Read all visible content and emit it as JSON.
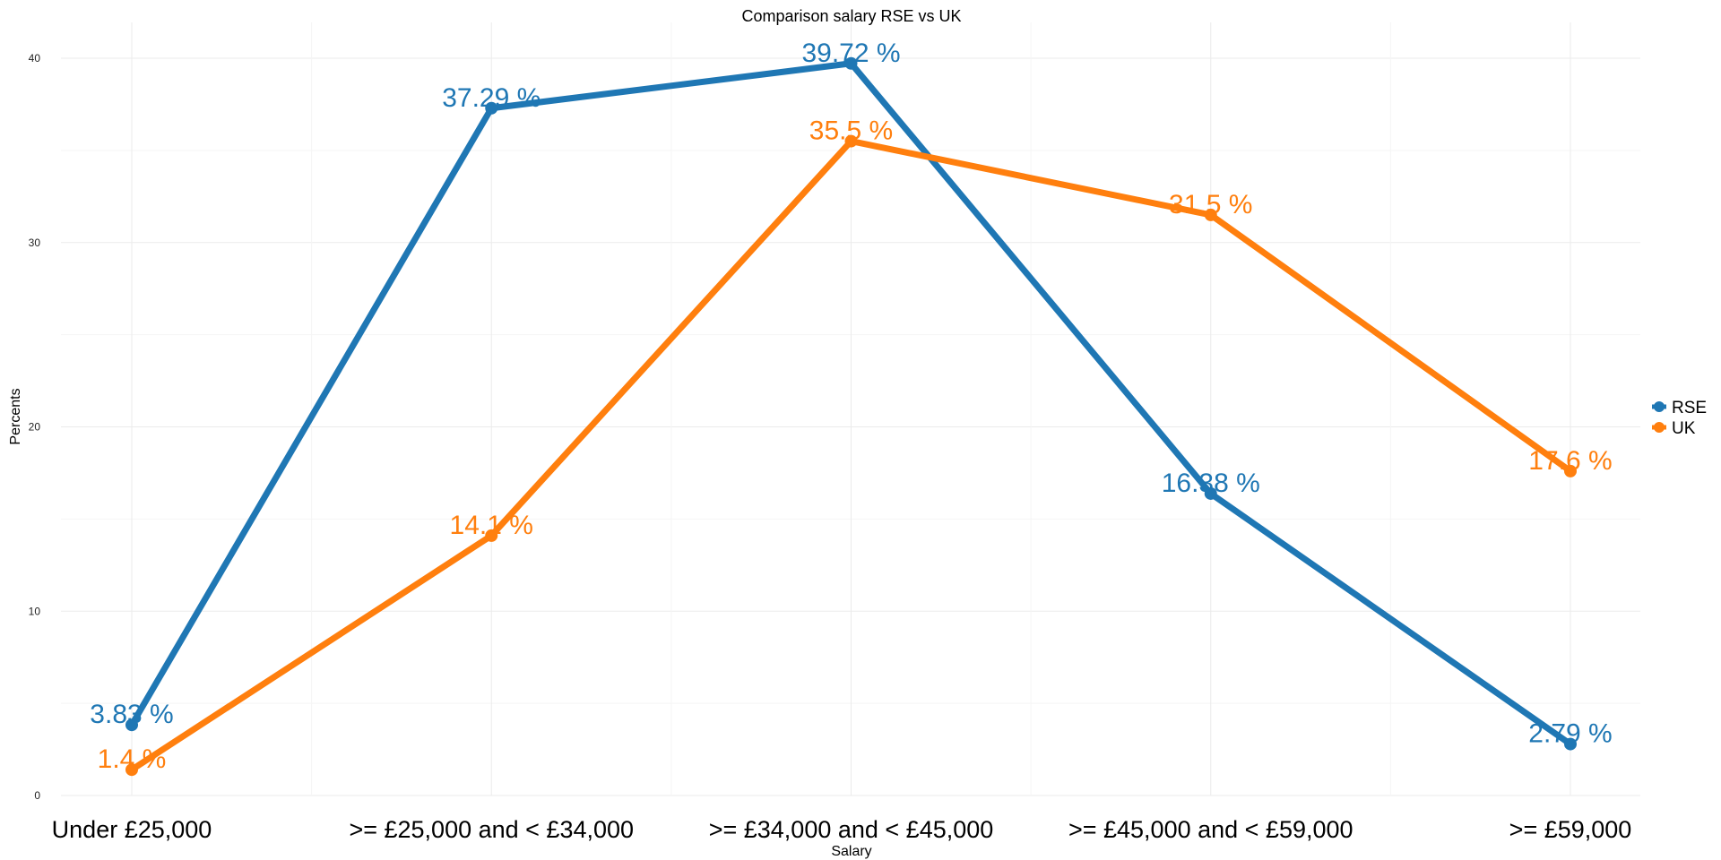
{
  "chart_data": {
    "type": "line",
    "title": "Comparison salary RSE vs UK",
    "xlabel": "Salary",
    "ylabel": "Percents",
    "categories": [
      "Under £25,000",
      ">= £25,000 and < £34,000",
      ">= £34,000 and < £45,000",
      ">= £45,000 and < £59,000",
      ">= £59,000"
    ],
    "ylim": [
      0,
      40
    ],
    "yticks": [
      "0",
      "10",
      "20",
      "30",
      "40"
    ],
    "grid": true,
    "legend_position": "right",
    "series": [
      {
        "name": "RSE",
        "color": "#1f77b4",
        "values": [
          3.83,
          37.29,
          39.72,
          16.38,
          2.79
        ],
        "labels": [
          "3.83 %",
          "37.29 %",
          "39.72 %",
          "16.38 %",
          "2.79 %"
        ]
      },
      {
        "name": "UK",
        "color": "#ff7f0e",
        "values": [
          1.4,
          14.1,
          35.5,
          31.5,
          17.6
        ],
        "labels": [
          "1.4 %",
          "14.1 %",
          "35.5 %",
          "31.5 %",
          "17.6 %"
        ]
      }
    ]
  }
}
